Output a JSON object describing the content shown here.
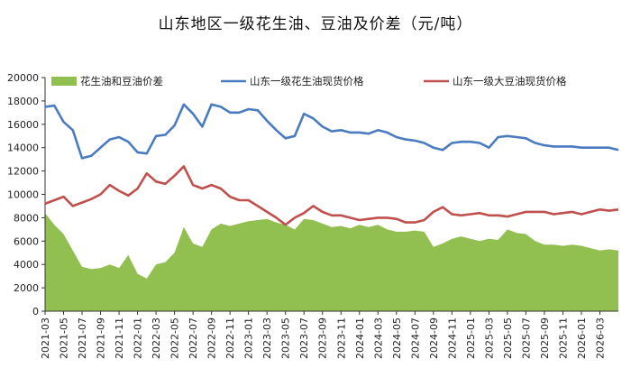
{
  "chart_data": {
    "type": "line",
    "title": "山东地区一级花生油、豆油及价差（元/吨）",
    "ylim": [
      0,
      20000
    ],
    "y_ticks": [
      "0",
      "2000",
      "4000",
      "6000",
      "8000",
      "10000",
      "12000",
      "14000",
      "16000",
      "18000",
      "20000"
    ],
    "x_range": [
      "2021-03",
      "2026-05"
    ],
    "x_ticks": [
      "2021-03",
      "2021-05",
      "2021-07",
      "2021-09",
      "2021-11",
      "2022-01",
      "2022-03",
      "2022-05",
      "2022-07",
      "2022-09",
      "2022-11",
      "2023-01",
      "2023-03",
      "2023-05",
      "2023-07",
      "2023-09",
      "2023-11",
      "2024-01",
      "2024-03",
      "2024-05",
      "2024-07",
      "2024-09",
      "2024-11",
      "2025-01",
      "2025-03",
      "2025-05",
      "2025-07",
      "2025-09",
      "2025-11",
      "2026-01",
      "2026-03"
    ],
    "legend_position": "top",
    "series": [
      {
        "name": "花生油和豆油价差",
        "kind": "area",
        "color": "#92c050",
        "points": [
          [
            "2021-03",
            8400
          ],
          [
            "2021-04",
            7400
          ],
          [
            "2021-05",
            6600
          ],
          [
            "2021-06",
            5200
          ],
          [
            "2021-07",
            3800
          ],
          [
            "2021-08",
            3600
          ],
          [
            "2021-09",
            3700
          ],
          [
            "2021-10",
            4000
          ],
          [
            "2021-11",
            3700
          ],
          [
            "2021-12",
            4800
          ],
          [
            "2022-01",
            3200
          ],
          [
            "2022-02",
            2800
          ],
          [
            "2022-03",
            4000
          ],
          [
            "2022-04",
            4200
          ],
          [
            "2022-05",
            5000
          ],
          [
            "2022-06",
            7200
          ],
          [
            "2022-07",
            5800
          ],
          [
            "2022-08",
            5500
          ],
          [
            "2022-09",
            7000
          ],
          [
            "2022-10",
            7500
          ],
          [
            "2022-11",
            7300
          ],
          [
            "2022-12",
            7500
          ],
          [
            "2023-01",
            7700
          ],
          [
            "2023-02",
            7800
          ],
          [
            "2023-03",
            7900
          ],
          [
            "2023-04",
            7600
          ],
          [
            "2023-05",
            7400
          ],
          [
            "2023-06",
            7000
          ],
          [
            "2023-07",
            7900
          ],
          [
            "2023-08",
            7800
          ],
          [
            "2023-09",
            7500
          ],
          [
            "2023-10",
            7200
          ],
          [
            "2023-11",
            7300
          ],
          [
            "2023-12",
            7100
          ],
          [
            "2024-01",
            7400
          ],
          [
            "2024-02",
            7200
          ],
          [
            "2024-03",
            7400
          ],
          [
            "2024-04",
            7000
          ],
          [
            "2024-05",
            6800
          ],
          [
            "2024-06",
            6800
          ],
          [
            "2024-07",
            6900
          ],
          [
            "2024-08",
            6800
          ],
          [
            "2024-09",
            5500
          ],
          [
            "2024-10",
            5800
          ],
          [
            "2024-11",
            6200
          ],
          [
            "2024-12",
            6400
          ],
          [
            "2025-01",
            6200
          ],
          [
            "2025-02",
            6000
          ],
          [
            "2025-03",
            6200
          ],
          [
            "2025-04",
            6100
          ],
          [
            "2025-05",
            7000
          ],
          [
            "2025-06",
            6700
          ],
          [
            "2025-07",
            6600
          ],
          [
            "2025-08",
            6000
          ],
          [
            "2025-09",
            5700
          ],
          [
            "2025-10",
            5700
          ],
          [
            "2025-11",
            5600
          ],
          [
            "2025-12",
            5700
          ],
          [
            "2026-01",
            5600
          ],
          [
            "2026-02",
            5400
          ],
          [
            "2026-03",
            5200
          ],
          [
            "2026-04",
            5300
          ],
          [
            "2026-05",
            5200
          ]
        ]
      },
      {
        "name": "山东一级花生油现货价格",
        "kind": "line",
        "color": "#4a7bbf",
        "points": [
          [
            "2021-03",
            17500
          ],
          [
            "2021-04",
            17600
          ],
          [
            "2021-05",
            16200
          ],
          [
            "2021-06",
            15500
          ],
          [
            "2021-07",
            13100
          ],
          [
            "2021-08",
            13300
          ],
          [
            "2021-09",
            14000
          ],
          [
            "2021-10",
            14700
          ],
          [
            "2021-11",
            14900
          ],
          [
            "2021-12",
            14500
          ],
          [
            "2022-01",
            13600
          ],
          [
            "2022-02",
            13500
          ],
          [
            "2022-03",
            15000
          ],
          [
            "2022-04",
            15100
          ],
          [
            "2022-05",
            15900
          ],
          [
            "2022-06",
            17700
          ],
          [
            "2022-07",
            16900
          ],
          [
            "2022-08",
            15800
          ],
          [
            "2022-09",
            17700
          ],
          [
            "2022-10",
            17500
          ],
          [
            "2022-11",
            17000
          ],
          [
            "2022-12",
            17000
          ],
          [
            "2023-01",
            17300
          ],
          [
            "2023-02",
            17200
          ],
          [
            "2023-03",
            16300
          ],
          [
            "2023-04",
            15500
          ],
          [
            "2023-05",
            14800
          ],
          [
            "2023-06",
            15000
          ],
          [
            "2023-07",
            16900
          ],
          [
            "2023-08",
            16500
          ],
          [
            "2023-09",
            15800
          ],
          [
            "2023-10",
            15400
          ],
          [
            "2023-11",
            15500
          ],
          [
            "2023-12",
            15300
          ],
          [
            "2024-01",
            15300
          ],
          [
            "2024-02",
            15200
          ],
          [
            "2024-03",
            15500
          ],
          [
            "2024-04",
            15300
          ],
          [
            "2024-05",
            14900
          ],
          [
            "2024-06",
            14700
          ],
          [
            "2024-07",
            14600
          ],
          [
            "2024-08",
            14400
          ],
          [
            "2024-09",
            14000
          ],
          [
            "2024-10",
            13800
          ],
          [
            "2024-11",
            14400
          ],
          [
            "2024-12",
            14500
          ],
          [
            "2025-01",
            14500
          ],
          [
            "2025-02",
            14400
          ],
          [
            "2025-03",
            14000
          ],
          [
            "2025-04",
            14900
          ],
          [
            "2025-05",
            15000
          ],
          [
            "2025-06",
            14900
          ],
          [
            "2025-07",
            14800
          ],
          [
            "2025-08",
            14400
          ],
          [
            "2025-09",
            14200
          ],
          [
            "2025-10",
            14100
          ],
          [
            "2025-11",
            14100
          ],
          [
            "2025-12",
            14100
          ],
          [
            "2026-01",
            14000
          ],
          [
            "2026-02",
            14000
          ],
          [
            "2026-03",
            14000
          ],
          [
            "2026-04",
            14000
          ],
          [
            "2026-05",
            13800
          ]
        ]
      },
      {
        "name": "山东一级大豆油现货价格",
        "kind": "line",
        "color": "#c0504d",
        "points": [
          [
            "2021-03",
            9200
          ],
          [
            "2021-04",
            9500
          ],
          [
            "2021-05",
            9800
          ],
          [
            "2021-06",
            9000
          ],
          [
            "2021-07",
            9300
          ],
          [
            "2021-08",
            9600
          ],
          [
            "2021-09",
            10000
          ],
          [
            "2021-10",
            10800
          ],
          [
            "2021-11",
            10300
          ],
          [
            "2021-12",
            9900
          ],
          [
            "2022-01",
            10500
          ],
          [
            "2022-02",
            11800
          ],
          [
            "2022-03",
            11100
          ],
          [
            "2022-04",
            10900
          ],
          [
            "2022-05",
            11600
          ],
          [
            "2022-06",
            12400
          ],
          [
            "2022-07",
            10800
          ],
          [
            "2022-08",
            10500
          ],
          [
            "2022-09",
            10800
          ],
          [
            "2022-10",
            10500
          ],
          [
            "2022-11",
            9800
          ],
          [
            "2022-12",
            9500
          ],
          [
            "2023-01",
            9500
          ],
          [
            "2023-02",
            9000
          ],
          [
            "2023-03",
            8500
          ],
          [
            "2023-04",
            8000
          ],
          [
            "2023-05",
            7400
          ],
          [
            "2023-06",
            8000
          ],
          [
            "2023-07",
            8400
          ],
          [
            "2023-08",
            9000
          ],
          [
            "2023-09",
            8500
          ],
          [
            "2023-10",
            8200
          ],
          [
            "2023-11",
            8200
          ],
          [
            "2023-12",
            8000
          ],
          [
            "2024-01",
            7800
          ],
          [
            "2024-02",
            7900
          ],
          [
            "2024-03",
            8000
          ],
          [
            "2024-04",
            8000
          ],
          [
            "2024-05",
            7900
          ],
          [
            "2024-06",
            7600
          ],
          [
            "2024-07",
            7600
          ],
          [
            "2024-08",
            7800
          ],
          [
            "2024-09",
            8500
          ],
          [
            "2024-10",
            8900
          ],
          [
            "2024-11",
            8300
          ],
          [
            "2024-12",
            8200
          ],
          [
            "2025-01",
            8300
          ],
          [
            "2025-02",
            8400
          ],
          [
            "2025-03",
            8200
          ],
          [
            "2025-04",
            8200
          ],
          [
            "2025-05",
            8100
          ],
          [
            "2025-06",
            8300
          ],
          [
            "2025-07",
            8500
          ],
          [
            "2025-08",
            8500
          ],
          [
            "2025-09",
            8500
          ],
          [
            "2025-10",
            8300
          ],
          [
            "2025-11",
            8400
          ],
          [
            "2025-12",
            8500
          ],
          [
            "2026-01",
            8300
          ],
          [
            "2026-02",
            8500
          ],
          [
            "2026-03",
            8700
          ],
          [
            "2026-04",
            8600
          ],
          [
            "2026-05",
            8700
          ]
        ]
      }
    ]
  }
}
